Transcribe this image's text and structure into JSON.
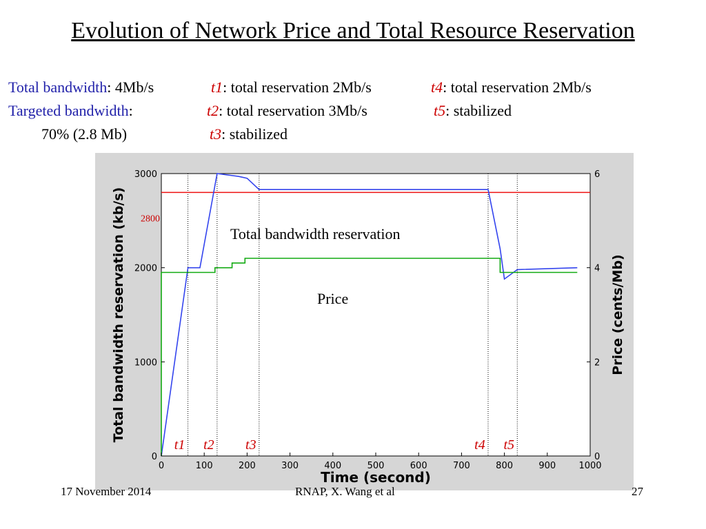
{
  "slide": {
    "title": "Evolution of Network Price and Total Resource Reservation",
    "info": {
      "total_bw_label": "Total bandwidth",
      "total_bw_value": ": 4Mb/s",
      "t1": "t1",
      "t1_text": ":  total reservation 2Mb/s",
      "t4": "t4",
      "t4_text": ":  total reservation 2Mb/s",
      "targeted_bw_label": "Targeted bandwidth",
      "targeted_colon": ":",
      "t2": "t2",
      "t2_text": ":  total reservation 3Mb/s",
      "t5": "t5",
      "t5_text": ":  stabilized",
      "targeted_value": "70% (2.8 Mb)",
      "t3": "t3",
      "t3_text": ":  stabilized"
    },
    "footer": {
      "date": "17 November 2014",
      "author": "RNAP, X. Wang et al",
      "page": "27"
    }
  },
  "colors": {
    "title_blue": "#2222aa",
    "marker_red": "#cc0000",
    "reservation_line": "#3344ee",
    "price_line": "#11aa11",
    "target_line": "#ee1111",
    "panel_bg": "#d6d6d6"
  },
  "chart_data": {
    "type": "line",
    "xlabel": "Time (second)",
    "ylabel": "Total bandwidth reservation (kb/s)",
    "y2label": "Price (cents/Mb)",
    "xlim": [
      0,
      1000
    ],
    "ylim": [
      0,
      3000
    ],
    "y2lim": [
      0,
      6
    ],
    "xticks": [
      "0",
      "100",
      "200",
      "300",
      "400",
      "500",
      "600",
      "700",
      "800",
      "900",
      "1000"
    ],
    "yticks": [
      "0",
      "1000",
      "2000",
      "3000"
    ],
    "y2ticks": [
      "0",
      "2",
      "4",
      "6"
    ],
    "grid": false,
    "target_value": 2800,
    "target_label": "2800",
    "annotations": [
      "Total bandwidth reservation",
      "Price"
    ],
    "event_markers": [
      {
        "label": "t1",
        "x": 62
      },
      {
        "label": "t2",
        "x": 130
      },
      {
        "label": "t3",
        "x": 228
      },
      {
        "label": "t4",
        "x": 762
      },
      {
        "label": "t5",
        "x": 830
      }
    ],
    "series": [
      {
        "axis": "left",
        "x": [
          0,
          62,
          90,
          130,
          180,
          200,
          228,
          762,
          790,
          800,
          830,
          970
        ],
        "y": [
          0,
          2000,
          2000,
          3000,
          2970,
          2950,
          2830,
          2830,
          2200,
          1880,
          1980,
          2000
        ]
      },
      {
        "axis": "right",
        "x": [
          0,
          0,
          62,
          125,
          125,
          165,
          165,
          195,
          195,
          762,
          790,
          790,
          970
        ],
        "y": [
          0,
          3.9,
          3.9,
          3.9,
          4.0,
          4.0,
          4.1,
          4.1,
          4.2,
          4.2,
          4.2,
          3.9,
          3.9
        ]
      }
    ]
  }
}
